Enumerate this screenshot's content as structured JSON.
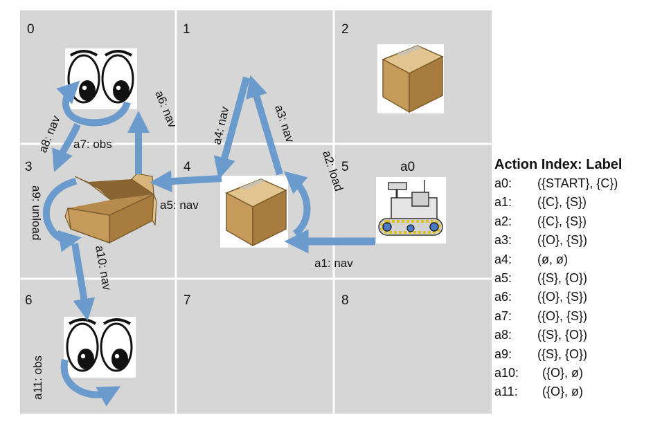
{
  "grid": {
    "cell_indices": [
      "0",
      "1",
      "2",
      "3",
      "4",
      "5",
      "6",
      "7",
      "8"
    ]
  },
  "robot_label": "a0",
  "actions_on_grid": [
    {
      "id": "a1",
      "text": "a1: nav"
    },
    {
      "id": "a2",
      "text": "a2: load"
    },
    {
      "id": "a3",
      "text": "a3: nav"
    },
    {
      "id": "a4",
      "text": "a4: nav"
    },
    {
      "id": "a5",
      "text": "a5: nav"
    },
    {
      "id": "a6",
      "text": "a6: nav"
    },
    {
      "id": "a7",
      "text": "a7: obs"
    },
    {
      "id": "a8",
      "text": "a8: nav"
    },
    {
      "id": "a9",
      "text": "a9: unload"
    },
    {
      "id": "a10",
      "text": "a10: nav"
    },
    {
      "id": "a11",
      "text": "a11: obs"
    }
  ],
  "legend": {
    "title": "Action Index: Label",
    "rows": [
      {
        "index": "a0:",
        "label": "({START}, {C})"
      },
      {
        "index": "a1:",
        "label": "({C}, {S})"
      },
      {
        "index": "a2:",
        "label": "({C}, {S})"
      },
      {
        "index": "a3:",
        "label": "({O}, {S})"
      },
      {
        "index": "a4:",
        "label": "(ø, ø)"
      },
      {
        "index": "a5:",
        "label": "({S}, {O})"
      },
      {
        "index": "a6:",
        "label": "({O}, {S})"
      },
      {
        "index": "a7:",
        "label": "({O}, {S})"
      },
      {
        "index": "a8:",
        "label": "({S}, {O})"
      },
      {
        "index": "a9:",
        "label": "({S}, {O})"
      },
      {
        "index": "a10:",
        "label": "({O}, ø)"
      },
      {
        "index": "a11:",
        "label": "({O}, ø)"
      }
    ]
  },
  "colors": {
    "cell_fill": "#d6d6d6",
    "arrow": "#6a9bcc",
    "box": "#c9a46b"
  },
  "icons": [
    "eyes-icon",
    "closed-box-icon",
    "open-box-icon",
    "robot-icon"
  ]
}
